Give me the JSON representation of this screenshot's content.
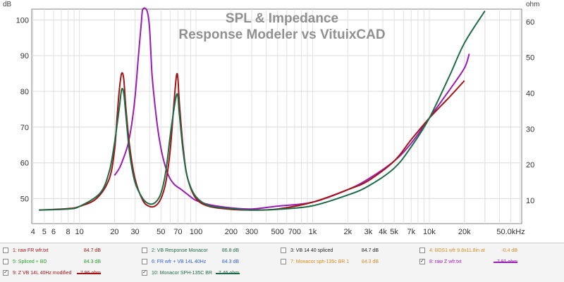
{
  "chart_data": {
    "type": "line",
    "title": "SPL & Impedance",
    "subtitle": "Response Modeler vs VituixCAD",
    "ylabel_left": "dB",
    "ylabel_right": "ohm",
    "xscale": "log",
    "xlim": [
      3.9,
      62000
    ],
    "ylim_left": [
      43,
      103
    ],
    "ylim_right": [
      3.5,
      63.5
    ],
    "grid": true,
    "x_ticks": [
      {
        "v": 4,
        "label": "4"
      },
      {
        "v": 5,
        "label": "5"
      },
      {
        "v": 6,
        "label": "6"
      },
      {
        "v": 8,
        "label": "8"
      },
      {
        "v": 10,
        "label": "10"
      },
      {
        "v": 20,
        "label": "20"
      },
      {
        "v": 30,
        "label": "30"
      },
      {
        "v": 50,
        "label": "50"
      },
      {
        "v": 70,
        "label": "70"
      },
      {
        "v": 100,
        "label": "100"
      },
      {
        "v": 200,
        "label": "200"
      },
      {
        "v": 300,
        "label": "300"
      },
      {
        "v": 500,
        "label": "500"
      },
      {
        "v": 700,
        "label": "700"
      },
      {
        "v": 1000,
        "label": "1k"
      },
      {
        "v": 2000,
        "label": "2k"
      },
      {
        "v": 3000,
        "label": "3k"
      },
      {
        "v": 4000,
        "label": "4k"
      },
      {
        "v": 5000,
        "label": "5k"
      },
      {
        "v": 7000,
        "label": "7k"
      },
      {
        "v": 10000,
        "label": "10k"
      },
      {
        "v": 20000,
        "label": "20k"
      },
      {
        "v": 50000,
        "label": "50.0kHz"
      }
    ],
    "y_ticks_left": [
      50,
      60,
      70,
      80,
      90,
      100
    ],
    "y_ticks_right": [
      10,
      20,
      30,
      40,
      50,
      60
    ],
    "series": [
      {
        "name": "Z VB 14L 40Hz modified",
        "color": "#a31515",
        "axis": "right",
        "points": [
          [
            4.5,
            7.3
          ],
          [
            8,
            7.7
          ],
          [
            10,
            8.3
          ],
          [
            14,
            10.5
          ],
          [
            18,
            16
          ],
          [
            20,
            24
          ],
          [
            21,
            33
          ],
          [
            22,
            41
          ],
          [
            23,
            45.5
          ],
          [
            24,
            44
          ],
          [
            25,
            36
          ],
          [
            27,
            25
          ],
          [
            30,
            16
          ],
          [
            35,
            10
          ],
          [
            40,
            8.3
          ],
          [
            45,
            8.5
          ],
          [
            50,
            10.5
          ],
          [
            55,
            15
          ],
          [
            60,
            24
          ],
          [
            65,
            38
          ],
          [
            68,
            45
          ],
          [
            70,
            44
          ],
          [
            72,
            37
          ],
          [
            78,
            24
          ],
          [
            85,
            16
          ],
          [
            100,
            10.5
          ],
          [
            130,
            8.3
          ],
          [
            200,
            7.5
          ],
          [
            300,
            7.3
          ],
          [
            500,
            7.6
          ],
          [
            1000,
            9.5
          ],
          [
            2000,
            13
          ],
          [
            3000,
            15.5
          ],
          [
            5000,
            21
          ],
          [
            7000,
            27
          ],
          [
            10000,
            33
          ],
          [
            15000,
            39
          ],
          [
            20000,
            43.5
          ]
        ]
      },
      {
        "name": "Monacor SPH-135C BR",
        "color": "#1e6b47",
        "axis": "right",
        "points": [
          [
            4.5,
            7.3
          ],
          [
            8,
            7.6
          ],
          [
            10,
            8.3
          ],
          [
            15,
            12
          ],
          [
            18,
            18
          ],
          [
            20,
            26
          ],
          [
            22,
            36
          ],
          [
            23,
            41
          ],
          [
            24,
            40
          ],
          [
            25,
            34
          ],
          [
            27,
            23
          ],
          [
            30,
            15
          ],
          [
            35,
            10.5
          ],
          [
            40,
            9
          ],
          [
            45,
            9.5
          ],
          [
            50,
            12
          ],
          [
            55,
            18
          ],
          [
            60,
            28
          ],
          [
            65,
            36
          ],
          [
            68,
            39.5
          ],
          [
            70,
            39
          ],
          [
            72,
            34
          ],
          [
            78,
            23
          ],
          [
            85,
            16
          ],
          [
            100,
            11
          ],
          [
            130,
            8.5
          ],
          [
            200,
            7.7
          ],
          [
            300,
            7.3
          ],
          [
            500,
            7.5
          ],
          [
            1000,
            8.5
          ],
          [
            2000,
            11.5
          ],
          [
            3000,
            14
          ],
          [
            5000,
            19
          ],
          [
            7000,
            25
          ],
          [
            10000,
            33
          ],
          [
            15000,
            45
          ],
          [
            20000,
            54
          ],
          [
            30000,
            63
          ]
        ]
      },
      {
        "name": "raw Z wfr.txt",
        "color": "#9b1bb5",
        "axis": "right",
        "points": [
          [
            20,
            17
          ],
          [
            22,
            19
          ],
          [
            24,
            22
          ],
          [
            26,
            25.5
          ],
          [
            28,
            31
          ],
          [
            30,
            39
          ],
          [
            32,
            50
          ],
          [
            34,
            60
          ],
          [
            35,
            64
          ],
          [
            38,
            63
          ],
          [
            40,
            58
          ],
          [
            42,
            45
          ],
          [
            45,
            35
          ],
          [
            48,
            28
          ],
          [
            52,
            22
          ],
          [
            58,
            17
          ],
          [
            65,
            14.5
          ],
          [
            75,
            13
          ],
          [
            90,
            11
          ],
          [
            100,
            10
          ],
          [
            130,
            8.8
          ],
          [
            200,
            7.9
          ],
          [
            300,
            7.6
          ],
          [
            500,
            8.4
          ],
          [
            1000,
            9.5
          ],
          [
            2000,
            13
          ],
          [
            3000,
            16
          ],
          [
            5000,
            21
          ],
          [
            7000,
            26
          ],
          [
            10000,
            33
          ],
          [
            15000,
            41
          ],
          [
            20000,
            47
          ],
          [
            22000,
            51
          ]
        ]
      }
    ]
  },
  "legend": [
    {
      "num": "1:",
      "name": "raw FR wfr.txt",
      "value": "84.7 dB",
      "checked": false,
      "color": "#a31515",
      "line": false
    },
    {
      "num": "2:",
      "name": "VB Response Monacor",
      "value": "86.8 dB",
      "checked": false,
      "color": "#1e6b47",
      "line": false
    },
    {
      "num": "3:",
      "name": "VB 14 40 spliced",
      "value": "84.7 dB",
      "checked": false,
      "color": "#222222",
      "line": false
    },
    {
      "num": "4:",
      "name": "BDS1 wfr 9.8x11.8in at",
      "value": "-0.4 dB",
      "checked": false,
      "color": "#d98c1f",
      "line": false
    },
    {
      "num": "5:",
      "name": "Spliced + BD",
      "value": "84.3 dB",
      "checked": false,
      "color": "#2aa12a",
      "line": false
    },
    {
      "num": "6:",
      "name": "FR wfr + VB 14L 40Hz",
      "value": "84.3 dB",
      "checked": false,
      "color": "#2c5fd6",
      "line": false
    },
    {
      "num": "7:",
      "name": "Monacor sph-135c BR 1",
      "value": "84.3 dB",
      "checked": false,
      "color": "#d98c1f",
      "line": false
    },
    {
      "num": "8:",
      "name": "raw Z wfr.txt",
      "value": "7.91 ohm",
      "checked": true,
      "color": "#9b1bb5",
      "line": true
    },
    {
      "num": "9:",
      "name": "Z VB 14L 40Hz modified",
      "value": "7.96 ohm",
      "checked": true,
      "color": "#a31515",
      "line": true
    },
    {
      "num": "10:",
      "name": "Monacor SPH-135C BR",
      "value": "7.46 ohm",
      "checked": true,
      "color": "#1e6b47",
      "line": true
    }
  ]
}
